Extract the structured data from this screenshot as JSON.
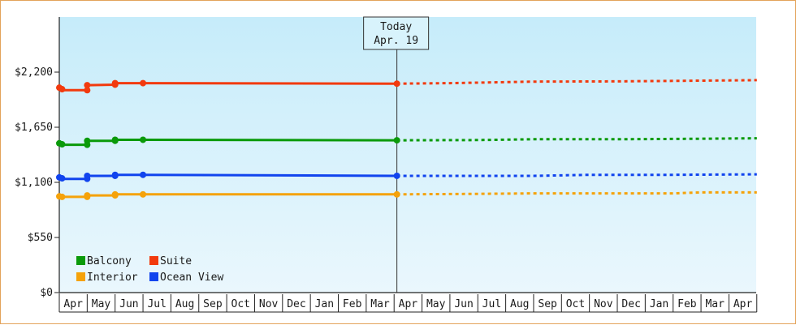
{
  "chart_data": {
    "type": "line",
    "colors": {
      "background_top": "#c6ecfa",
      "background_bottom": "#eaf7fd",
      "border": "#e3a35a"
    },
    "ylim": [
      0,
      2750
    ],
    "y_ticks": [
      0,
      550,
      1100,
      1650,
      2200
    ],
    "y_tick_labels": [
      "$0",
      "$550",
      "$1,100",
      "$1,650",
      "$2,200"
    ],
    "months": [
      "Apr",
      "May",
      "Jun",
      "Jul",
      "Aug",
      "Sep",
      "Oct",
      "Nov",
      "Dec",
      "Jan",
      "Feb",
      "Mar",
      "Apr",
      "May",
      "Jun",
      "Jul",
      "Aug",
      "Sep",
      "Oct",
      "Nov",
      "Dec",
      "Jan",
      "Feb",
      "Mar",
      "Apr"
    ],
    "today": {
      "label": "Today",
      "date": "Apr. 19",
      "x": 12.1
    },
    "series": [
      {
        "name": "Suite",
        "color": "#f23a0e",
        "history": [
          [
            0,
            2045
          ],
          [
            0.1,
            2030
          ],
          [
            0.15,
            2020
          ],
          [
            1,
            2020
          ],
          [
            1,
            2070
          ],
          [
            2,
            2075
          ],
          [
            2,
            2090
          ],
          [
            3,
            2090
          ],
          [
            12.1,
            2085
          ]
        ],
        "forecast": [
          [
            12.1,
            2085
          ],
          [
            14,
            2090
          ],
          [
            17,
            2105
          ],
          [
            20,
            2108
          ],
          [
            23,
            2115
          ],
          [
            25,
            2120
          ]
        ]
      },
      {
        "name": "Balcony",
        "color": "#0a9a0a",
        "history": [
          [
            0,
            1490
          ],
          [
            0.1,
            1480
          ],
          [
            0.15,
            1475
          ],
          [
            1,
            1475
          ],
          [
            1,
            1515
          ],
          [
            2,
            1515
          ],
          [
            2,
            1525
          ],
          [
            3,
            1525
          ],
          [
            12.1,
            1520
          ]
        ],
        "forecast": [
          [
            12.1,
            1520
          ],
          [
            15,
            1522
          ],
          [
            17,
            1530
          ],
          [
            20,
            1530
          ],
          [
            23,
            1535
          ],
          [
            25,
            1540
          ]
        ]
      },
      {
        "name": "Ocean View",
        "color": "#1144ee",
        "history": [
          [
            0,
            1150
          ],
          [
            0.1,
            1140
          ],
          [
            0.15,
            1135
          ],
          [
            1,
            1135
          ],
          [
            1,
            1165
          ],
          [
            2,
            1165
          ],
          [
            2,
            1175
          ],
          [
            3,
            1175
          ],
          [
            12.1,
            1165
          ]
        ],
        "forecast": [
          [
            12.1,
            1165
          ],
          [
            17,
            1165
          ],
          [
            19,
            1175
          ],
          [
            22,
            1175
          ],
          [
            25,
            1180
          ]
        ]
      },
      {
        "name": "Interior",
        "color": "#f5a20a",
        "history": [
          [
            0,
            960
          ],
          [
            0.1,
            955
          ],
          [
            0.15,
            955
          ],
          [
            1,
            955
          ],
          [
            1,
            970
          ],
          [
            2,
            970
          ],
          [
            2,
            980
          ],
          [
            3,
            980
          ],
          [
            12.1,
            980
          ]
        ],
        "forecast": [
          [
            12.1,
            980
          ],
          [
            15,
            985
          ],
          [
            17,
            990
          ],
          [
            22,
            990
          ],
          [
            23,
            1000
          ],
          [
            25,
            1000
          ]
        ]
      }
    ],
    "legend": [
      {
        "name": "Balcony",
        "color": "#0a9a0a"
      },
      {
        "name": "Suite",
        "color": "#f23a0e"
      },
      {
        "name": "Interior",
        "color": "#f5a20a"
      },
      {
        "name": "Ocean View",
        "color": "#1144ee"
      }
    ],
    "legend_position": "bottom-left",
    "grid": false
  }
}
